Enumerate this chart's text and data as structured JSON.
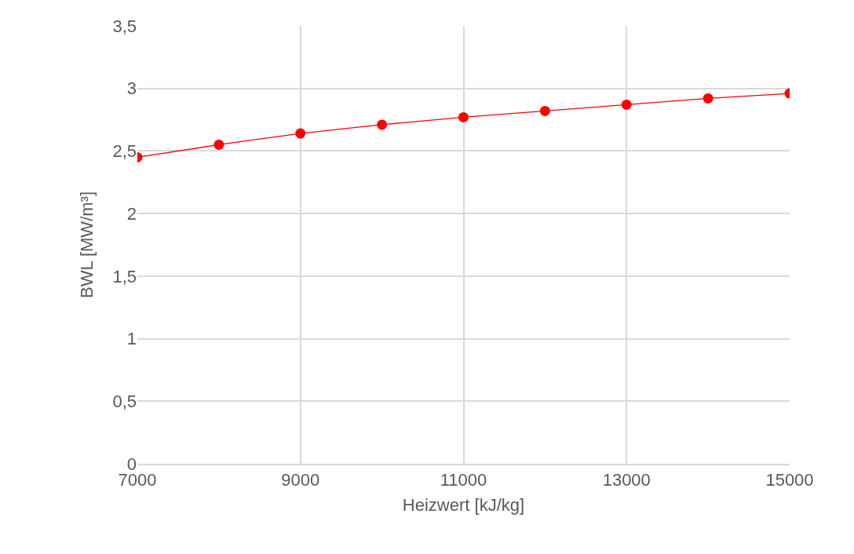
{
  "chart_data": {
    "type": "line",
    "xlabel": "Heizwert [kJ/kg]",
    "ylabel": "BWL [MW/m³]",
    "x": [
      7000,
      8000,
      9000,
      10000,
      11000,
      12000,
      13000,
      14000,
      15000
    ],
    "series": [
      {
        "color": "#ff0000",
        "values": [
          2.45,
          2.55,
          2.64,
          2.71,
          2.77,
          2.82,
          2.87,
          2.92,
          2.96
        ]
      }
    ],
    "xlim": [
      7000,
      15000
    ],
    "xticks": [
      7000,
      9000,
      11000,
      13000,
      15000
    ],
    "ylim": [
      0,
      3.5
    ],
    "yticks": [
      0,
      {
        "value": 0.5,
        "label": "0,5"
      },
      1,
      {
        "value": 1.5,
        "label": "1,5"
      },
      2,
      {
        "value": 2.5,
        "label": "2,5"
      },
      3,
      {
        "value": 3.5,
        "label": "3,5"
      }
    ],
    "grid": true,
    "marker": "circle",
    "line_style": "solid"
  }
}
